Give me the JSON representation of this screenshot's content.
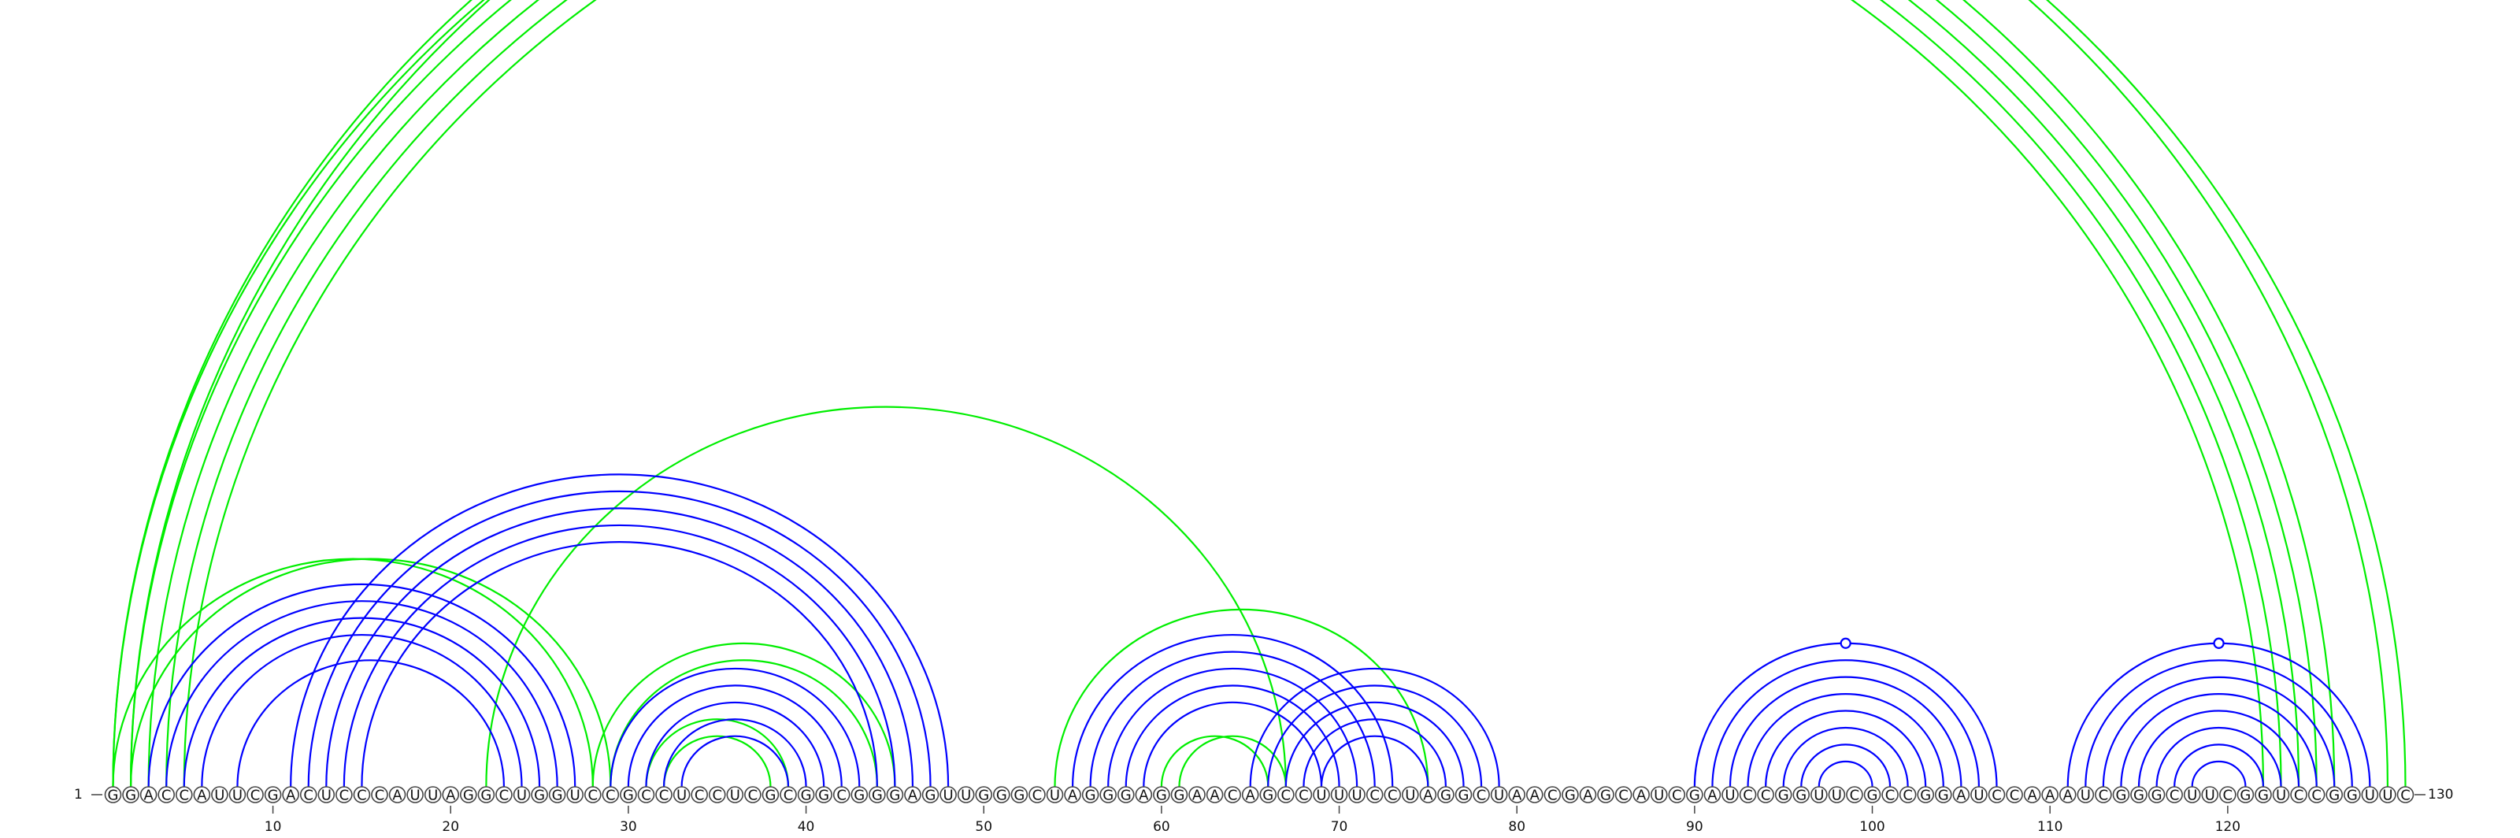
{
  "sequence": "GGACCAUUCGACUCCCAUUAGGCUGGUCCGCCUCCUCGCGGCGGGAGUUGGGCUAGGGAGGAACAGCCUUUCCUAGGCUAACGAGCAUCGAUCCGGUUCGCCGGAUCCAAAUCGGGCUUCGGUCCGGUUC",
  "start_label": "1",
  "end_label": "130",
  "ticks": [
    10,
    20,
    30,
    40,
    50,
    60,
    70,
    80,
    90,
    100,
    110,
    120
  ],
  "colors": {
    "primary": "#0000ff",
    "secondary": "#00ee00"
  },
  "primary_pairs": [
    [
      3,
      27
    ],
    [
      4,
      26
    ],
    [
      5,
      25
    ],
    [
      6,
      24
    ],
    [
      8,
      23
    ],
    [
      11,
      48
    ],
    [
      12,
      47
    ],
    [
      13,
      46
    ],
    [
      14,
      45
    ],
    [
      15,
      44
    ],
    [
      29,
      43
    ],
    [
      30,
      42
    ],
    [
      31,
      41
    ],
    [
      32,
      40
    ],
    [
      33,
      39
    ],
    [
      55,
      73
    ],
    [
      56,
      72
    ],
    [
      57,
      71
    ],
    [
      58,
      70
    ],
    [
      59,
      69
    ],
    [
      65,
      79
    ],
    [
      66,
      78
    ],
    [
      67,
      77
    ],
    [
      68,
      76
    ],
    [
      69,
      75
    ],
    [
      90,
      107
    ],
    [
      91,
      106
    ],
    [
      92,
      105
    ],
    [
      93,
      104
    ],
    [
      94,
      103
    ],
    [
      95,
      102
    ],
    [
      96,
      101
    ],
    [
      97,
      100
    ],
    [
      111,
      128
    ],
    [
      112,
      127
    ],
    [
      113,
      126
    ],
    [
      114,
      125
    ],
    [
      115,
      124
    ],
    [
      116,
      123
    ],
    [
      117,
      122
    ],
    [
      118,
      121
    ]
  ],
  "secondary_pairs": [
    [
      1,
      126
    ],
    [
      2,
      125
    ],
    [
      3,
      124
    ],
    [
      4,
      123
    ],
    [
      5,
      122
    ],
    [
      2,
      130
    ],
    [
      1,
      129
    ],
    [
      1,
      28
    ],
    [
      2,
      29
    ],
    [
      22,
      67
    ],
    [
      28,
      45
    ],
    [
      29,
      44
    ],
    [
      31,
      39
    ],
    [
      32,
      38
    ],
    [
      54,
      75
    ],
    [
      60,
      66
    ],
    [
      61,
      67
    ]
  ],
  "primary_markers": [
    99,
    120,
    121,
    119
  ],
  "secondary_markers": [
    65
  ]
}
